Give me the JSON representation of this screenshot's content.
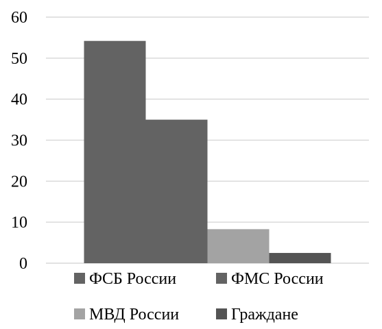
{
  "chart_data": {
    "type": "bar",
    "title": "",
    "xlabel": "",
    "ylabel": "",
    "ylim": [
      0,
      60
    ],
    "yticks": [
      0,
      10,
      20,
      30,
      40,
      50,
      60
    ],
    "grid": true,
    "legend_position": "bottom",
    "categories": [
      ""
    ],
    "series": [
      {
        "name": "ФСБ России",
        "values": [
          54.2
        ],
        "color": "#636363"
      },
      {
        "name": "ФМС России",
        "values": [
          35.0
        ],
        "color": "#636363"
      },
      {
        "name": "МВД России",
        "values": [
          8.3
        ],
        "color": "#a3a3a3"
      },
      {
        "name": "Граждане",
        "values": [
          2.5
        ],
        "color": "#545454"
      }
    ]
  },
  "colors": {
    "gridline": "#d9d9d9",
    "axis_line": "#d9d9d9",
    "text": "#000000"
  }
}
